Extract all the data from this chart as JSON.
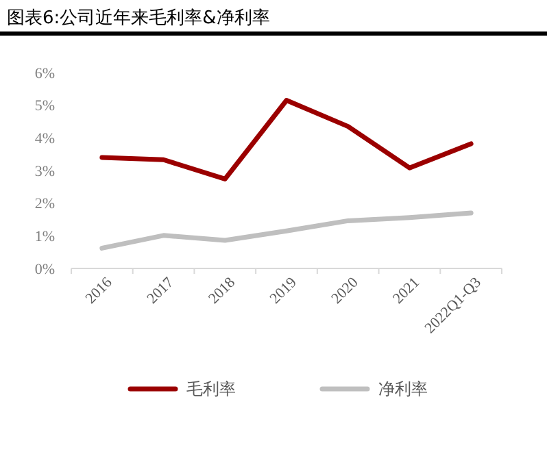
{
  "chart_data": {
    "type": "line",
    "title": "图表6:公司近年来毛利率&净利率",
    "categories": [
      "2016",
      "2017",
      "2018",
      "2019",
      "2020",
      "2021",
      "2022Q1-Q3"
    ],
    "series": [
      {
        "name": "毛利率",
        "color": "#9b0000",
        "values": [
          3.4,
          3.33,
          2.74,
          5.15,
          4.35,
          3.08,
          3.82
        ]
      },
      {
        "name": "净利率",
        "color": "#bfbfbf",
        "values": [
          0.62,
          1.01,
          0.86,
          1.15,
          1.46,
          1.56,
          1.7
        ]
      }
    ],
    "ylim": [
      0,
      6
    ],
    "yticks": [
      {
        "value": 0,
        "label": "0%"
      },
      {
        "value": 1,
        "label": "1%"
      },
      {
        "value": 2,
        "label": "2%"
      },
      {
        "value": 3,
        "label": "3%"
      },
      {
        "value": 4,
        "label": "4%"
      },
      {
        "value": 5,
        "label": "5%"
      },
      {
        "value": 6,
        "label": "6%"
      }
    ],
    "grid": false,
    "legend": "bottom",
    "marker": "none",
    "line_style": "solid"
  }
}
